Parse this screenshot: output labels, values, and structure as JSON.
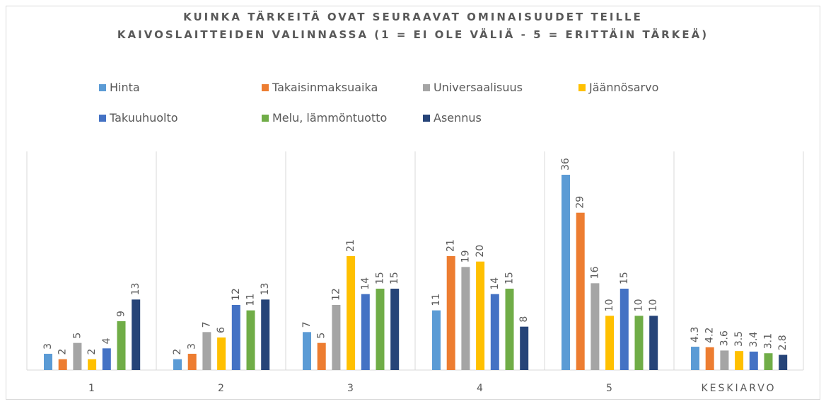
{
  "chart_data": {
    "type": "bar",
    "title": "KUINKA TÄRKEITÄ OVAT SEURAAVAT OMINAISUUDET TEILLE\nKAIVOSLAITTEIDEN VALINNASSA (1 = EI OLE VÄLIÄ - 5 = ERITTÄIN TÄRKEÄ)",
    "categories": [
      "1",
      "2",
      "3",
      "4",
      "5",
      "KESKIARVO"
    ],
    "series": [
      {
        "name": "Hinta",
        "color": "#5b9bd5",
        "values": [
          3,
          2,
          7,
          11,
          36,
          4.3
        ]
      },
      {
        "name": "Takaisinmaksuaika",
        "color": "#ed7d31",
        "values": [
          2,
          3,
          5,
          21,
          29,
          4.2
        ]
      },
      {
        "name": "Universaalisuus",
        "color": "#a5a5a5",
        "values": [
          5,
          7,
          12,
          19,
          16,
          3.6
        ]
      },
      {
        "name": "Jäännösarvo",
        "color": "#ffc000",
        "values": [
          2,
          6,
          21,
          20,
          10,
          3.5
        ]
      },
      {
        "name": "Takuuhuolto",
        "color": "#4472c4",
        "values": [
          4,
          12,
          14,
          14,
          15,
          3.4
        ]
      },
      {
        "name": "Melu, lämmöntuotto",
        "color": "#70ad47",
        "values": [
          9,
          11,
          15,
          15,
          10,
          3.1
        ]
      },
      {
        "name": "Asennus",
        "color": "#264478",
        "values": [
          13,
          13,
          15,
          8,
          10,
          2.8
        ]
      }
    ]
  }
}
